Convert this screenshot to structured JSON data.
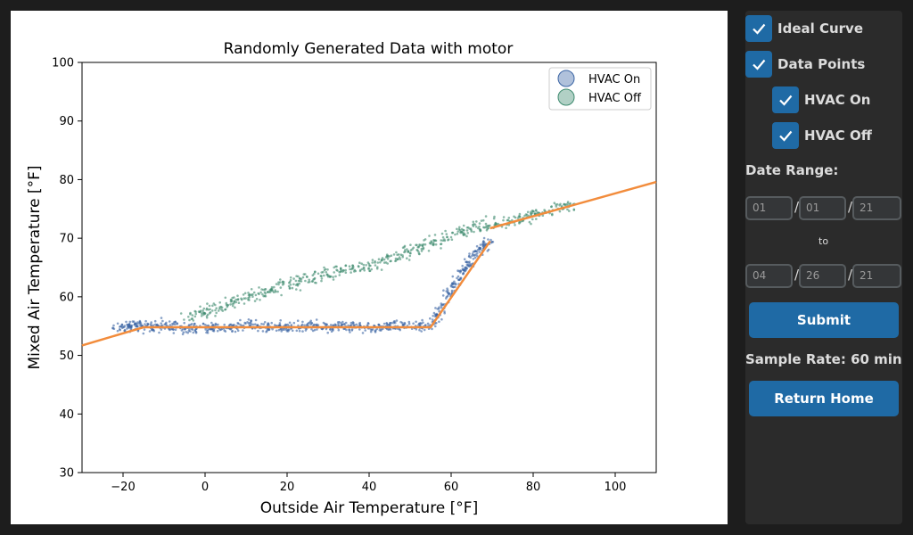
{
  "colors": {
    "hvac_on": "#3a64a4",
    "hvac_off": "#3d8a6e",
    "ideal_curve": "#f28c3c",
    "accent": "#1f6aa5"
  },
  "chart_data": {
    "type": "scatter",
    "title": "Randomly Generated Data with motor",
    "xlabel": "Outside Air Temperature [°F]",
    "ylabel": "Mixed Air Temperature [°F]",
    "xlim": [
      -30,
      110
    ],
    "ylim": [
      30,
      100
    ],
    "xticks": [
      -20,
      0,
      20,
      40,
      60,
      80,
      100
    ],
    "yticks": [
      30,
      40,
      50,
      60,
      70,
      80,
      90,
      100
    ],
    "legend_position": "top-right",
    "series": [
      {
        "name": "HVAC On",
        "approx_points": [
          [
            -22,
            54.5
          ],
          [
            -18,
            55.2
          ],
          [
            -14,
            54.8
          ],
          [
            -10,
            55.1
          ],
          [
            -5,
            54.6
          ],
          [
            0,
            55.0
          ],
          [
            5,
            54.4
          ],
          [
            10,
            55.3
          ],
          [
            15,
            54.9
          ],
          [
            20,
            54.7
          ],
          [
            25,
            55.2
          ],
          [
            30,
            54.8
          ],
          [
            35,
            55.0
          ],
          [
            40,
            54.6
          ],
          [
            45,
            55.1
          ],
          [
            50,
            54.9
          ],
          [
            55,
            55.0
          ],
          [
            58,
            58.5
          ],
          [
            61,
            62.5
          ],
          [
            64,
            65.5
          ],
          [
            67,
            68.0
          ],
          [
            69,
            69.5
          ]
        ]
      },
      {
        "name": "HVAC Off",
        "approx_points": [
          [
            -5,
            56.5
          ],
          [
            0,
            57.5
          ],
          [
            5,
            58.5
          ],
          [
            10,
            59.8
          ],
          [
            15,
            61.0
          ],
          [
            20,
            62.0
          ],
          [
            25,
            63.0
          ],
          [
            30,
            63.8
          ],
          [
            35,
            64.5
          ],
          [
            40,
            65.3
          ],
          [
            45,
            66.5
          ],
          [
            50,
            67.8
          ],
          [
            55,
            69.0
          ],
          [
            60,
            70.5
          ],
          [
            65,
            71.5
          ],
          [
            70,
            72.5
          ],
          [
            75,
            73.0
          ],
          [
            80,
            74.0
          ],
          [
            85,
            74.8
          ],
          [
            90,
            75.8
          ]
        ]
      }
    ],
    "ideal_curve": {
      "name": "Ideal Curve",
      "segments": [
        [
          [
            -30,
            51.7
          ],
          [
            -15,
            54.8
          ],
          [
            55,
            54.8
          ],
          [
            69.5,
            69.5
          ]
        ],
        [
          [
            69.5,
            71.7
          ],
          [
            110,
            79.6
          ]
        ]
      ]
    }
  },
  "controls": {
    "ideal_curve_label": "Ideal Curve",
    "data_points_label": "Data Points",
    "hvac_on_label": "HVAC On",
    "hvac_off_label": "HVAC Off",
    "date_range_label": "Date Range:",
    "start_month": "01",
    "start_day": "01",
    "start_year": "21",
    "end_month": "04",
    "end_day": "26",
    "end_year": "21",
    "date_sep": "/",
    "to_label": "to",
    "submit_label": "Submit",
    "sample_rate_label": "Sample Rate: 60 min",
    "return_home_label": "Return Home"
  }
}
